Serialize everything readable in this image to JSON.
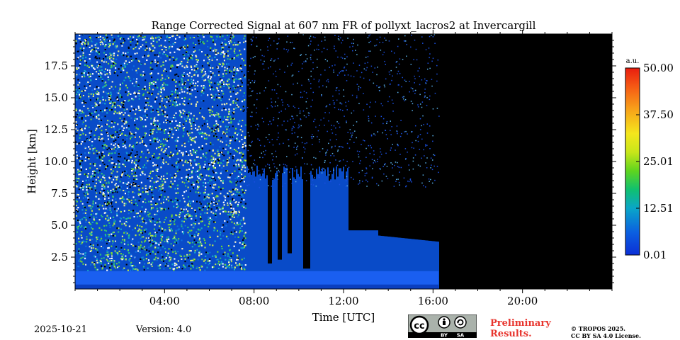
{
  "chart_data": {
    "type": "heatmap",
    "title": "Range Corrected Signal at 607 nm FR of pollyxt_lacros2 at Invercargill",
    "xlabel": "Time [UTC]",
    "ylabel": "Height [km]",
    "x_range_hours": [
      0,
      24
    ],
    "y_range_km": [
      0,
      20
    ],
    "x_ticks": [
      {
        "value": 4,
        "label": "04:00"
      },
      {
        "value": 8,
        "label": "08:00"
      },
      {
        "value": 12,
        "label": "12:00"
      },
      {
        "value": 16,
        "label": "16:00"
      },
      {
        "value": 20,
        "label": "20:00"
      }
    ],
    "y_ticks": [
      {
        "value": 2.5,
        "label": "2.5"
      },
      {
        "value": 5.0,
        "label": "5.0"
      },
      {
        "value": 7.5,
        "label": "7.5"
      },
      {
        "value": 10.0,
        "label": "10.0"
      },
      {
        "value": 12.5,
        "label": "12.5"
      },
      {
        "value": 15.0,
        "label": "15.0"
      },
      {
        "value": 17.5,
        "label": "17.5"
      }
    ],
    "colorbar": {
      "unit": "a.u.",
      "range": [
        0.01,
        50.0
      ],
      "ticks": [
        {
          "value": 0.01,
          "label": "0.01"
        },
        {
          "value": 12.51,
          "label": "12.51"
        },
        {
          "value": 25.01,
          "label": "25.01"
        },
        {
          "value": 37.5,
          "label": "37.50"
        },
        {
          "value": 50.0,
          "label": "50.00"
        }
      ]
    },
    "data_end_hour": 16.25,
    "colors": {
      "no_data": "#000000",
      "boundary_layer": "#1f4fe0",
      "signal_low": "#0a57d8"
    }
  },
  "footer": {
    "date": "2025-10-21",
    "version": "Version: 4.0",
    "preliminary_line1": "Preliminary",
    "preliminary_line2": "Results.",
    "copyright_line1": "© TROPOS 2025.",
    "copyright_line2": "CC BY SA 4.0 License.",
    "cc_text": "cc",
    "by_text": "BY",
    "sa_text": "SA"
  }
}
